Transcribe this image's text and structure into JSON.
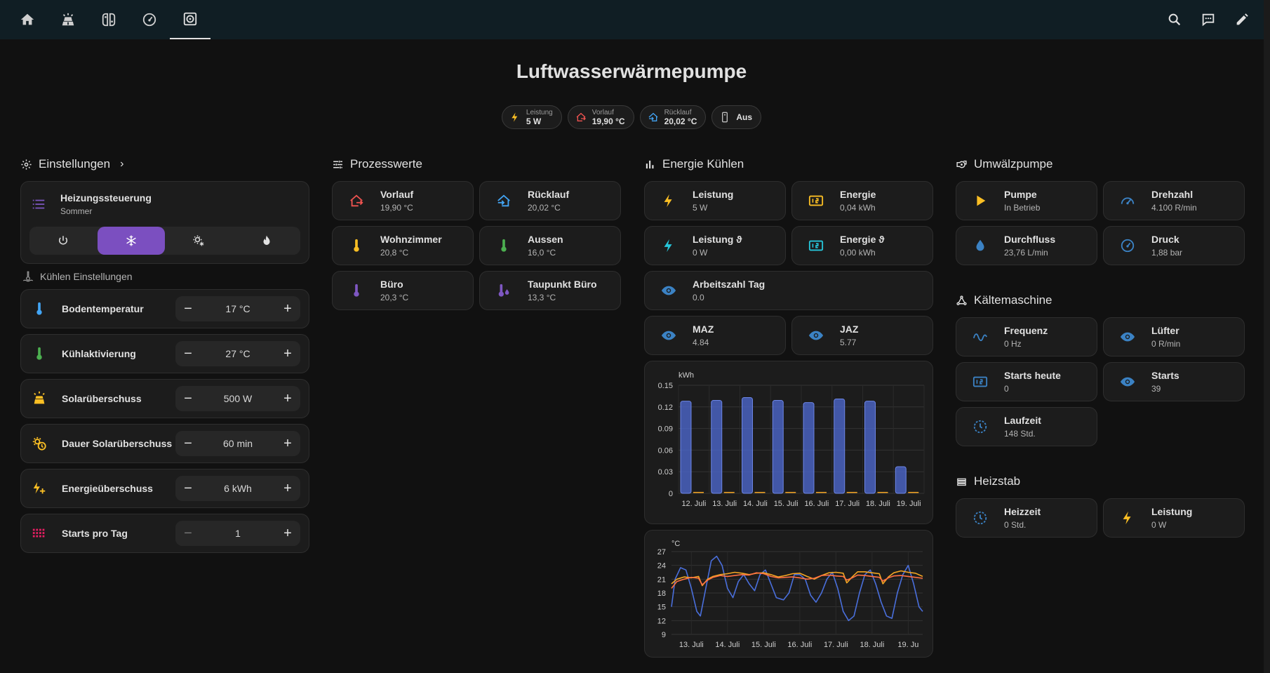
{
  "nav": {
    "tabs": [
      {
        "icon": "home-icon"
      },
      {
        "icon": "solar-panel-icon"
      },
      {
        "icon": "nintendo-switch-icon"
      },
      {
        "icon": "gauge-icon"
      },
      {
        "icon": "heat-pump-icon",
        "active": true
      }
    ],
    "actions": [
      "search-icon",
      "assist-chat-icon",
      "edit-pencil-icon"
    ]
  },
  "page": {
    "title": "Luftwasserwärmepumpe"
  },
  "badges": [
    {
      "label": "Leistung",
      "value": "5 W",
      "icon": "flash-icon",
      "color": "#fbbf24"
    },
    {
      "label": "Vorlauf",
      "value": "19,90 °C",
      "icon": "home-export-icon",
      "color": "#ef5350"
    },
    {
      "label": "Rücklauf",
      "value": "20,02 °C",
      "icon": "home-import-icon",
      "color": "#42a5f5"
    },
    {
      "label": "",
      "value": "Aus",
      "icon": "remote-icon",
      "color": "#bdbdbd"
    }
  ],
  "einstellungen": {
    "title": "Einstellungen",
    "heating_control": {
      "name": "Heizungssteuerung",
      "state": "Sommer"
    },
    "modes": [
      "power-icon",
      "snowflake-icon",
      "sun-snowflake-icon",
      "fire-icon"
    ],
    "cooling_title": "Kühlen Einstellungen",
    "numbers": [
      {
        "name": "Bodentemperatur",
        "value": "17 °C",
        "icon": "thermometer-icon",
        "color": "#42a5f5"
      },
      {
        "name": "Kühlaktivierung",
        "value": "27 °C",
        "icon": "thermometer-icon",
        "color": "#4caf50"
      },
      {
        "name": "Solarüberschuss",
        "value": "500 W",
        "icon": "solar-power-icon",
        "color": "#fbbf24"
      },
      {
        "name": "Dauer Solarüberschuss",
        "value": "60 min",
        "icon": "sun-clock-icon",
        "color": "#fbbf24"
      },
      {
        "name": "Energieüberschuss",
        "value": "6 kWh",
        "icon": "flash-plus-icon",
        "color": "#fbbf24"
      },
      {
        "name": "Starts pro Tag",
        "value": "1",
        "icon": "grid-dots-icon",
        "color": "#e91e63"
      }
    ]
  },
  "prozesswerte": {
    "title": "Prozesswerte",
    "tiles": [
      {
        "name": "Vorlauf",
        "value": "19,90 °C",
        "icon": "home-export-icon",
        "color": "#ef5350"
      },
      {
        "name": "Rücklauf",
        "value": "20,02 °C",
        "icon": "home-import-icon",
        "color": "#42a5f5"
      },
      {
        "name": "Wohnzimmer",
        "value": "20,8 °C",
        "icon": "thermometer-icon",
        "color": "#fbbf24"
      },
      {
        "name": "Aussen",
        "value": "16,0 °C",
        "icon": "thermometer-icon",
        "color": "#4caf50"
      },
      {
        "name": "Büro",
        "value": "20,3 °C",
        "icon": "thermometer-icon",
        "color": "#7e57c2"
      },
      {
        "name": "Taupunkt Büro",
        "value": "13,3 °C",
        "icon": "thermometer-water-icon",
        "color": "#7e57c2"
      }
    ]
  },
  "energie": {
    "title": "Energie Kühlen",
    "tiles": [
      {
        "name": "Leistung",
        "value": "5 W",
        "icon": "flash-icon",
        "color": "#fbbf24"
      },
      {
        "name": "Energie",
        "value": "0,04 kWh",
        "icon": "counter-icon",
        "color": "#fbbf24"
      },
      {
        "name": "Leistung ϑ",
        "value": "0 W",
        "icon": "flash-icon",
        "color": "#26c6da"
      },
      {
        "name": "Energie ϑ",
        "value": "0,00 kWh",
        "icon": "counter-icon",
        "color": "#26c6da"
      }
    ],
    "arbeitszahl": {
      "name": "Arbeitszahl Tag",
      "value": "0.0",
      "icon": "eye-icon"
    },
    "maz": {
      "name": "MAZ",
      "value": "4.84",
      "icon": "eye-icon"
    },
    "jaz": {
      "name": "JAZ",
      "value": "5.77",
      "icon": "eye-icon"
    }
  },
  "chart_data": [
    {
      "type": "bar",
      "ylabel": "kWh",
      "ylim": [
        0,
        0.15
      ],
      "yticks": [
        "0.15",
        "0.12",
        "0.09",
        "0.06",
        "0.03",
        "0"
      ],
      "categories": [
        "12. Juli",
        "13. Juli",
        "14. Juli",
        "15. Juli",
        "16. Juli",
        "17. Juli",
        "18. Juli",
        "19. Juli"
      ],
      "series": [
        {
          "values": [
            0.128,
            0.129,
            0.133,
            0.129,
            0.126,
            0.131,
            0.128,
            0.037
          ],
          "color": "#4f6bd6"
        },
        {
          "values": [
            0.001,
            0.001,
            0.001,
            0.001,
            0.001,
            0.001,
            0.001,
            0.001
          ],
          "color": "#f5a623"
        }
      ],
      "grid": true
    },
    {
      "type": "line",
      "ylabel": "°C",
      "ylim": [
        9,
        27
      ],
      "yticks": [
        "27",
        "24",
        "21",
        "18",
        "15",
        "12",
        "9"
      ],
      "xticks": [
        "13. Juli",
        "14. Juli",
        "15. Juli",
        "16. Juli",
        "17. Juli",
        "18. Juli",
        "19. Ju"
      ],
      "x_range": [
        12.45,
        19.4
      ],
      "series": [
        {
          "color": "#4a6fdc",
          "x": [
            12.45,
            12.55,
            12.7,
            12.85,
            13.0,
            13.15,
            13.25,
            13.4,
            13.55,
            13.7,
            13.85,
            14.0,
            14.15,
            14.3,
            14.45,
            14.6,
            14.75,
            14.9,
            15.05,
            15.2,
            15.35,
            15.55,
            15.7,
            15.85,
            16.0,
            16.15,
            16.3,
            16.45,
            16.6,
            16.75,
            16.9,
            17.05,
            17.2,
            17.35,
            17.5,
            17.65,
            17.8,
            17.95,
            18.1,
            18.25,
            18.4,
            18.55,
            18.7,
            18.85,
            19.0,
            19.15,
            19.3,
            19.4
          ],
          "y": [
            15,
            21,
            23.5,
            23,
            19,
            14,
            13,
            19,
            25,
            26,
            24,
            19,
            17,
            20.5,
            22,
            20,
            18.5,
            22,
            23,
            20,
            17,
            16.5,
            18,
            22,
            22,
            21,
            17.5,
            16,
            18,
            21,
            22.5,
            19,
            14,
            12,
            13,
            18,
            22,
            23,
            20,
            16,
            13,
            12.5,
            18,
            22,
            24,
            20,
            15,
            14
          ]
        },
        {
          "color": "#f5a623",
          "x": [
            12.45,
            12.6,
            12.8,
            13.0,
            13.2,
            13.3,
            13.45,
            13.6,
            13.8,
            14.0,
            14.2,
            14.4,
            14.6,
            14.8,
            15.0,
            15.2,
            15.4,
            15.6,
            15.8,
            16.0,
            16.2,
            16.4,
            16.6,
            16.8,
            17.0,
            17.2,
            17.3,
            17.45,
            17.6,
            17.8,
            18.0,
            18.2,
            18.3,
            18.45,
            18.6,
            18.8,
            19.0,
            19.2,
            19.4
          ],
          "y": [
            20,
            21,
            21.5,
            21.3,
            21.6,
            19.6,
            21,
            21.6,
            22,
            22.2,
            22.5,
            22.3,
            22,
            22.3,
            22.4,
            22,
            21.5,
            21.8,
            22.2,
            22.3,
            21.6,
            21,
            21.8,
            22.4,
            22.5,
            22.3,
            20.2,
            21.5,
            22.6,
            22.6,
            22.4,
            22.2,
            20,
            21.5,
            22.4,
            22.8,
            22.5,
            22.3,
            21.6
          ]
        },
        {
          "color": "#ff7043",
          "x": [
            12.45,
            12.6,
            12.8,
            13.0,
            13.2,
            13.3,
            13.45,
            13.6,
            13.8,
            14.0,
            14.2,
            14.4,
            14.6,
            14.8,
            15.0,
            15.2,
            15.4,
            15.6,
            15.8,
            16.0,
            16.2,
            16.4,
            16.6,
            16.8,
            17.0,
            17.2,
            17.3,
            17.45,
            17.6,
            17.8,
            18.0,
            18.2,
            18.3,
            18.45,
            18.6,
            18.8,
            19.0,
            19.2,
            19.4
          ],
          "y": [
            19,
            20.5,
            21,
            21.4,
            21.2,
            19.8,
            20.8,
            21.4,
            21.8,
            21.6,
            21.8,
            22,
            21.9,
            22.4,
            22.2,
            21.6,
            21.3,
            21.4,
            21.5,
            21.3,
            21.0,
            21.2,
            21.8,
            21.9,
            21.7,
            21.6,
            20.8,
            21.3,
            21.9,
            21.8,
            21.6,
            21.4,
            20.6,
            21.3,
            21.7,
            21.8,
            21.6,
            21.4,
            21.2
          ]
        }
      ],
      "grid": true
    }
  ],
  "umwaelzpumpe": {
    "title": "Umwälzpumpe",
    "tiles": [
      {
        "name": "Pumpe",
        "value": "In Betrieb",
        "icon": "play-icon",
        "color": "#fbbf24"
      },
      {
        "name": "Drehzahl",
        "value": "4.100 R/min",
        "icon": "speedometer-icon",
        "color": "#3b82c4"
      },
      {
        "name": "Durchfluss",
        "value": "23,76 L/min",
        "icon": "water-icon",
        "color": "#3b82c4"
      },
      {
        "name": "Druck",
        "value": "1,88 bar",
        "icon": "gauge-icon",
        "color": "#3b82c4"
      }
    ]
  },
  "kaeltemaschine": {
    "title": "Kältemaschine",
    "tiles": [
      {
        "name": "Frequenz",
        "value": "0 Hz",
        "icon": "sine-wave-icon",
        "color": "#3b82c4"
      },
      {
        "name": "Lüfter",
        "value": "0 R/min",
        "icon": "eye-icon",
        "color": "#3b82c4"
      },
      {
        "name": "Starts heute",
        "value": "0",
        "icon": "counter-icon",
        "color": "#3b82c4"
      },
      {
        "name": "Starts",
        "value": "39",
        "icon": "eye-icon",
        "color": "#3b82c4"
      },
      {
        "name": "Laufzeit",
        "value": "148 Std.",
        "icon": "clock-icon",
        "color": "#3b82c4"
      }
    ]
  },
  "heizstab": {
    "title": "Heizstab",
    "tiles": [
      {
        "name": "Heizzeit",
        "value": "0 Std.",
        "icon": "clock-icon",
        "color": "#3b82c4"
      },
      {
        "name": "Leistung",
        "value": "0 W",
        "icon": "flash-icon",
        "color": "#fbbf24"
      }
    ]
  }
}
